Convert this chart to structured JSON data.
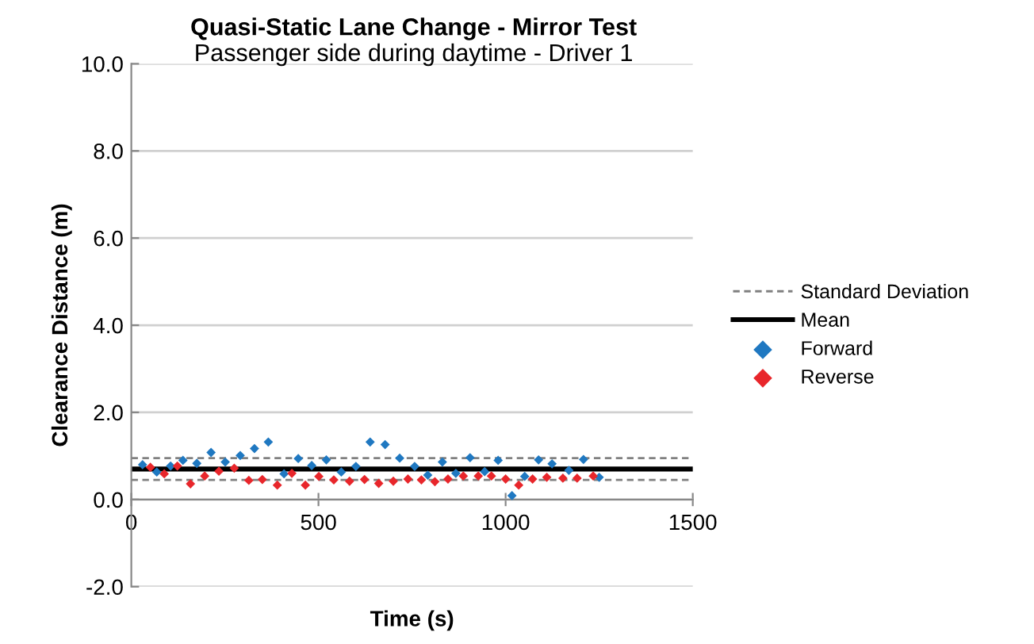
{
  "chart_data": {
    "type": "scatter",
    "title": "Quasi-Static Lane Change - Mirror Test",
    "subtitle": "Passenger side during daytime - Driver 1",
    "xlabel": "Time (s)",
    "ylabel": "Clearance Distance (m)",
    "xlim": [
      0,
      1500
    ],
    "xticks": [
      0,
      500,
      1000,
      1500
    ],
    "ylim": [
      -2,
      10
    ],
    "yticks": [
      {
        "value": -2,
        "label": "-2.0"
      },
      {
        "value": 0,
        "label": "0.0"
      },
      {
        "value": 2,
        "label": "2.0"
      },
      {
        "value": 4,
        "label": "4.0"
      },
      {
        "value": 6,
        "label": "6.0"
      },
      {
        "value": 8,
        "label": "8.0"
      },
      {
        "value": 10,
        "label": "10.0"
      }
    ],
    "grid": "y",
    "legend": "right",
    "marker": "diamond",
    "ref_lines": [
      {
        "axis": "y",
        "value": 0.95,
        "label": "Standard Deviation",
        "color": "#808080",
        "line_style": "dashed"
      },
      {
        "axis": "y",
        "value": 0.45,
        "label": null,
        "color": "#808080",
        "line_style": "dashed"
      },
      {
        "axis": "y",
        "value": 0.7,
        "label": "Mean",
        "color": "#000000",
        "line_style": "solid"
      }
    ],
    "series": [
      {
        "name": "Forward",
        "color": "#1f78c1",
        "x": [
          30,
          68,
          105,
          138,
          175,
          213,
          251,
          291,
          329,
          366,
          408,
          446,
          482,
          521,
          561,
          600,
          638,
          678,
          717,
          757,
          792,
          831,
          867,
          905,
          944,
          980,
          1017,
          1051,
          1088,
          1124,
          1169,
          1208,
          1250
        ],
        "values": [
          0.8,
          0.63,
          0.77,
          0.9,
          0.83,
          1.08,
          0.86,
          1.01,
          1.17,
          1.32,
          0.59,
          0.94,
          0.78,
          0.91,
          0.63,
          0.76,
          1.32,
          1.26,
          0.95,
          0.76,
          0.56,
          0.86,
          0.6,
          0.96,
          0.64,
          0.9,
          0.09,
          0.53,
          0.91,
          0.82,
          0.67,
          0.92,
          0.51
        ]
      },
      {
        "name": "Reverse",
        "color": "#e8262b",
        "x": [
          51,
          88,
          123,
          158,
          196,
          234,
          275,
          314,
          350,
          390,
          429,
          465,
          501,
          541,
          583,
          623,
          661,
          700,
          739,
          775,
          811,
          846,
          887,
          927,
          962,
          1000,
          1035,
          1072,
          1110,
          1153,
          1191,
          1234
        ],
        "values": [
          0.74,
          0.59,
          0.77,
          0.36,
          0.54,
          0.65,
          0.72,
          0.44,
          0.46,
          0.33,
          0.6,
          0.33,
          0.53,
          0.45,
          0.42,
          0.46,
          0.37,
          0.42,
          0.47,
          0.45,
          0.41,
          0.47,
          0.54,
          0.54,
          0.54,
          0.47,
          0.33,
          0.47,
          0.51,
          0.49,
          0.49,
          0.54
        ]
      }
    ]
  }
}
